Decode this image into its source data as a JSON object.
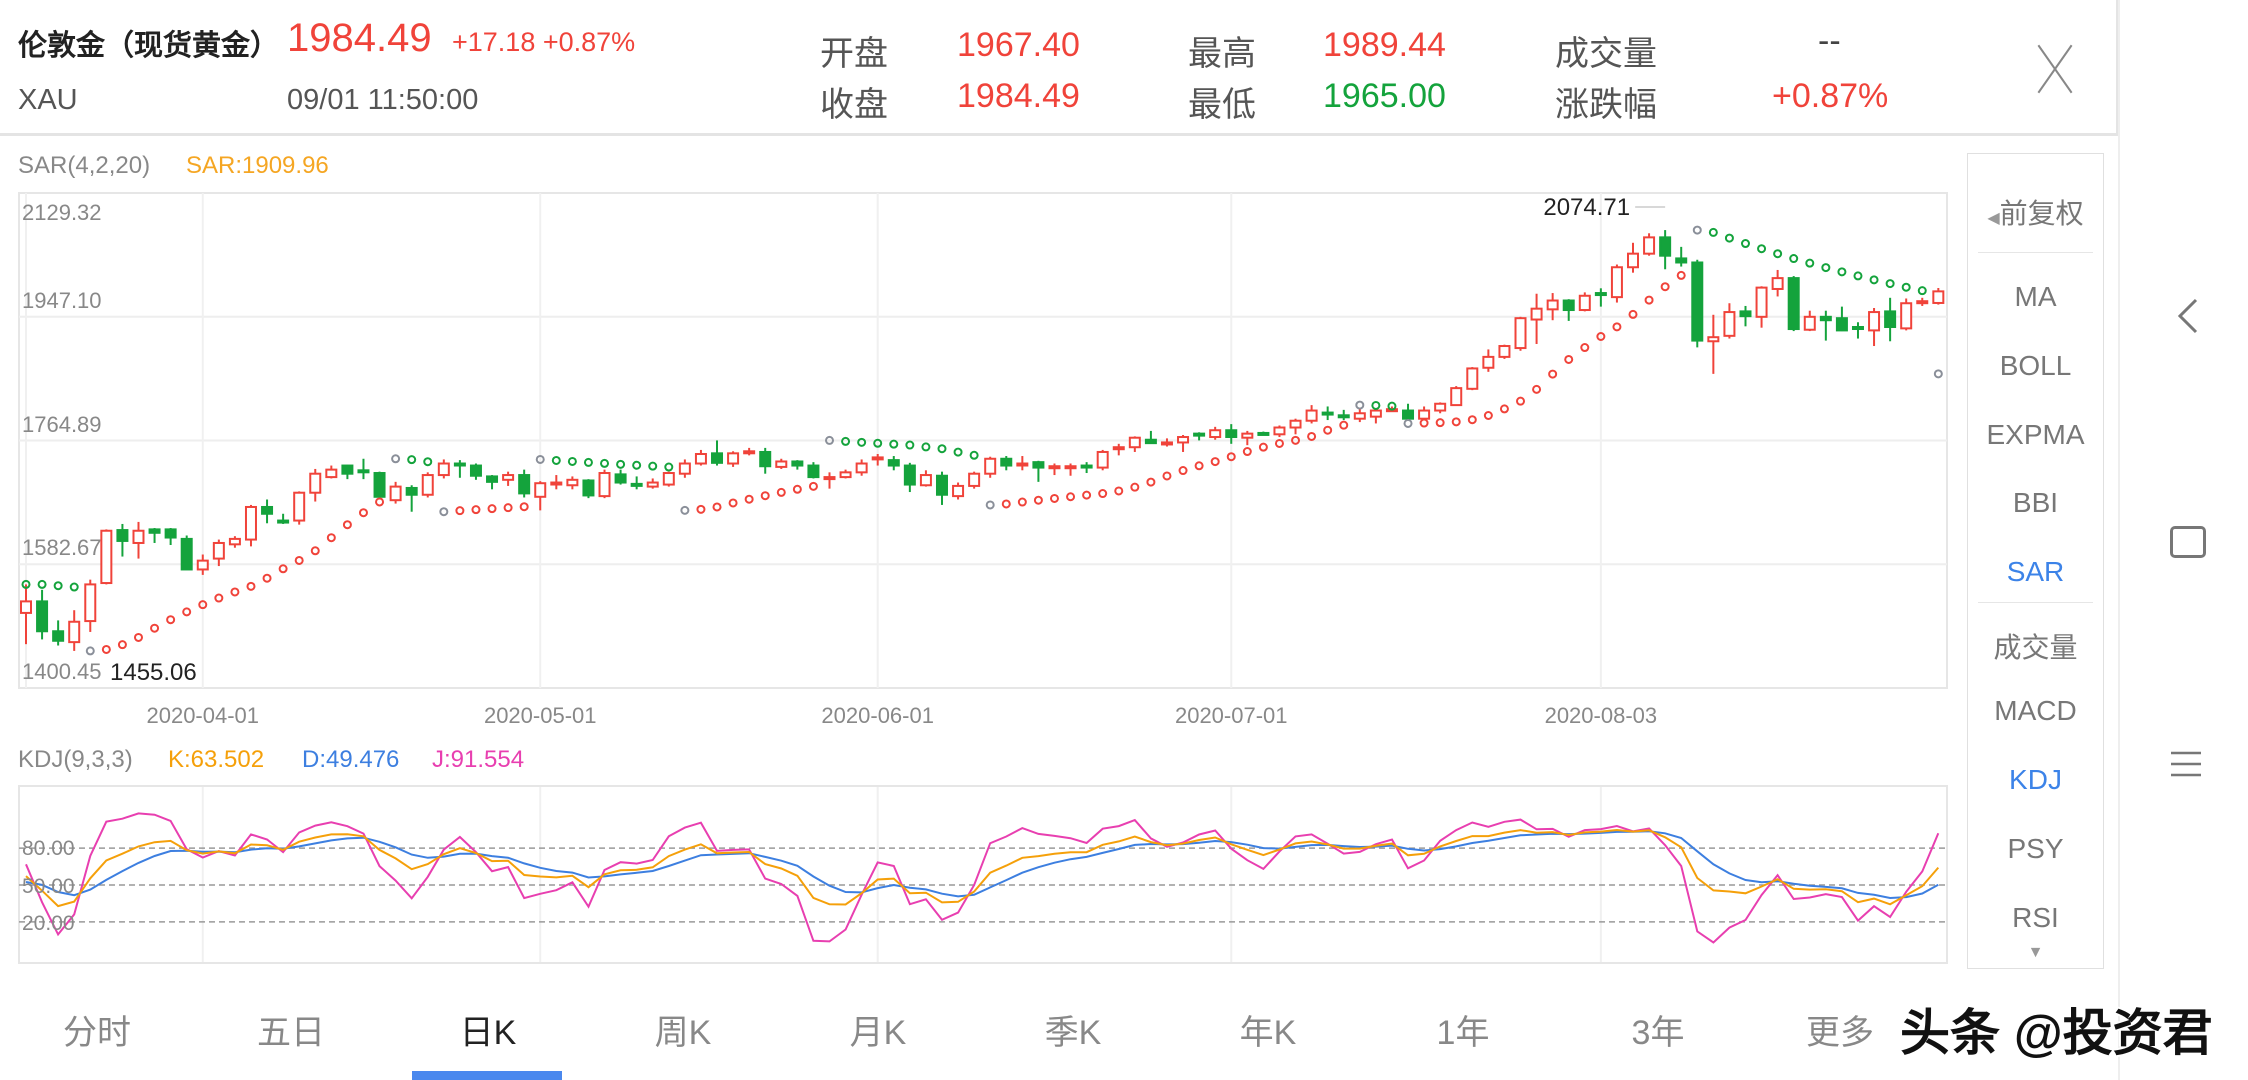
{
  "header": {
    "title": "伦敦金（现货黄金）",
    "price": "1984.49",
    "change": "+17.18 +0.87%",
    "symbol": "XAU",
    "datetime": "09/01 11:50:00",
    "stats": [
      {
        "label": "开盘",
        "value": "1967.40",
        "color": "red"
      },
      {
        "label": "收盘",
        "value": "1984.49",
        "color": "red"
      },
      {
        "label": "最高",
        "value": "1989.44",
        "color": "red"
      },
      {
        "label": "最低",
        "value": "1965.00",
        "color": "green"
      },
      {
        "label": "成交量",
        "value": "--",
        "color": "gray"
      },
      {
        "label": "涨跌幅",
        "value": "+0.87%",
        "color": "red"
      }
    ]
  },
  "indicator": {
    "name": "SAR(4,2,20)",
    "value": "SAR:1909.96"
  },
  "kdj": {
    "name": "KDJ(9,3,3)",
    "k": "K:63.502",
    "d": "D:49.476",
    "j": "J:91.554"
  },
  "side_menu": {
    "adjust": "前复权",
    "items": [
      "MA",
      "BOLL",
      "EXPMA",
      "BBI",
      "SAR",
      "成交量",
      "MACD",
      "KDJ",
      "PSY",
      "RSI"
    ],
    "active": [
      "SAR",
      "KDJ"
    ]
  },
  "tabs": [
    "分时",
    "五日",
    "日K",
    "周K",
    "月K",
    "季K",
    "年K",
    "1年",
    "3年",
    "更多"
  ],
  "active_tab": "日K",
  "watermark": "头条 @投资君",
  "colors": {
    "up": "#f0433a",
    "down": "#14a33c",
    "k": "#f5a00a",
    "d": "#3d7fe0",
    "j": "#e83fb0",
    "sar": "#f5a623",
    "accent": "#4a88ee"
  },
  "chart_data": {
    "type": "candlestick",
    "y_ticks": [
      "2129.32",
      "1947.10",
      "1764.89",
      "1582.67",
      "1400.45"
    ],
    "ylim": [
      1400.45,
      2129.32
    ],
    "x_ticks": [
      {
        "label": "2020-04-01",
        "index": 11
      },
      {
        "label": "2020-05-01",
        "index": 32
      },
      {
        "label": "2020-06-01",
        "index": 53
      },
      {
        "label": "2020-07-01",
        "index": 75
      },
      {
        "label": "2020-08-03",
        "index": 98
      }
    ],
    "max_label": "2074.71",
    "min_label": "1455.06",
    "sar_params": {
      "n": 4,
      "step": 0.02,
      "max": 0.2
    },
    "kdj_params": {
      "n": 9,
      "m1": 3,
      "m2": 3
    },
    "kdj_ticks": [
      "80.00",
      "50.00",
      "20.00"
    ],
    "ohlc": [
      [
        1511,
        1553,
        1465,
        1528
      ],
      [
        1528,
        1545,
        1472,
        1484
      ],
      [
        1484,
        1500,
        1463,
        1470
      ],
      [
        1468,
        1515,
        1455.06,
        1498
      ],
      [
        1499,
        1560,
        1483,
        1553
      ],
      [
        1555,
        1634,
        1553,
        1632
      ],
      [
        1633,
        1642,
        1594,
        1617
      ],
      [
        1614,
        1645,
        1591,
        1632
      ],
      [
        1634,
        1636,
        1614,
        1629
      ],
      [
        1634,
        1636,
        1611,
        1622
      ],
      [
        1620,
        1625,
        1575,
        1575
      ],
      [
        1575,
        1597,
        1567,
        1588
      ],
      [
        1591,
        1619,
        1580,
        1614
      ],
      [
        1612,
        1624,
        1607,
        1620
      ],
      [
        1619,
        1670,
        1609,
        1667
      ],
      [
        1667,
        1678,
        1643,
        1657
      ],
      [
        1647,
        1657,
        1642,
        1646
      ],
      [
        1647,
        1690,
        1641,
        1688
      ],
      [
        1688,
        1723,
        1675,
        1716
      ],
      [
        1711,
        1728,
        1709,
        1722
      ],
      [
        1728,
        1729,
        1708,
        1716
      ],
      [
        1721,
        1738,
        1708,
        1720
      ],
      [
        1717,
        1719,
        1680,
        1682
      ],
      [
        1677,
        1704,
        1672,
        1697
      ],
      [
        1695,
        1699,
        1660,
        1685
      ],
      [
        1685,
        1718,
        1681,
        1714
      ],
      [
        1714,
        1737,
        1709,
        1731
      ],
      [
        1731,
        1736,
        1710,
        1730
      ],
      [
        1728,
        1731,
        1707,
        1713
      ],
      [
        1712,
        1714,
        1693,
        1704
      ],
      [
        1707,
        1719,
        1698,
        1714
      ],
      [
        1714,
        1722,
        1681,
        1687
      ],
      [
        1682,
        1705,
        1662,
        1702
      ],
      [
        1701,
        1714,
        1693,
        1703
      ],
      [
        1699,
        1712,
        1693,
        1707
      ],
      [
        1706,
        1708,
        1680,
        1684
      ],
      [
        1683,
        1722,
        1680,
        1717
      ],
      [
        1715,
        1722,
        1700,
        1703
      ],
      [
        1701,
        1712,
        1693,
        1700
      ],
      [
        1697,
        1709,
        1694,
        1703
      ],
      [
        1700,
        1719,
        1697,
        1717
      ],
      [
        1716,
        1737,
        1710,
        1731
      ],
      [
        1731,
        1751,
        1728,
        1745
      ],
      [
        1746,
        1765,
        1728,
        1732
      ],
      [
        1731,
        1749,
        1726,
        1746
      ],
      [
        1748,
        1754,
        1743,
        1749
      ],
      [
        1748,
        1754,
        1716,
        1727
      ],
      [
        1726,
        1738,
        1723,
        1734
      ],
      [
        1734,
        1736,
        1722,
        1728
      ],
      [
        1728,
        1733,
        1709,
        1711
      ],
      [
        1710,
        1718,
        1694,
        1711
      ],
      [
        1711,
        1722,
        1709,
        1718
      ],
      [
        1718,
        1737,
        1713,
        1731
      ],
      [
        1739,
        1745,
        1728,
        1740
      ],
      [
        1736,
        1742,
        1721,
        1728
      ],
      [
        1728,
        1732,
        1689,
        1700
      ],
      [
        1699,
        1721,
        1697,
        1714
      ],
      [
        1713,
        1719,
        1670,
        1685
      ],
      [
        1683,
        1703,
        1678,
        1698
      ],
      [
        1698,
        1719,
        1694,
        1716
      ],
      [
        1716,
        1741,
        1710,
        1738
      ],
      [
        1738,
        1742,
        1721,
        1728
      ],
      [
        1730,
        1742,
        1721,
        1731
      ],
      [
        1733,
        1735,
        1704,
        1725
      ],
      [
        1726,
        1731,
        1714,
        1727
      ],
      [
        1726,
        1731,
        1713,
        1727
      ],
      [
        1728,
        1733,
        1717,
        1727
      ],
      [
        1725,
        1751,
        1721,
        1748
      ],
      [
        1754,
        1760,
        1743,
        1755
      ],
      [
        1755,
        1771,
        1748,
        1769
      ],
      [
        1766,
        1779,
        1760,
        1761
      ],
      [
        1761,
        1768,
        1756,
        1762
      ],
      [
        1762,
        1773,
        1748,
        1770
      ],
      [
        1775,
        1777,
        1765,
        1774
      ],
      [
        1770,
        1785,
        1766,
        1780
      ],
      [
        1780,
        1789,
        1760,
        1770
      ],
      [
        1769,
        1779,
        1758,
        1775
      ],
      [
        1776,
        1778,
        1773,
        1775
      ],
      [
        1774,
        1787,
        1770,
        1784
      ],
      [
        1784,
        1797,
        1774,
        1794
      ],
      [
        1794,
        1817,
        1790,
        1809
      ],
      [
        1806,
        1815,
        1795,
        1804
      ],
      [
        1802,
        1810,
        1795,
        1801
      ],
      [
        1797,
        1812,
        1792,
        1805
      ],
      [
        1800,
        1812,
        1790,
        1809
      ],
      [
        1810,
        1815,
        1807,
        1811
      ],
      [
        1809,
        1819,
        1795,
        1797
      ],
      [
        1797,
        1815,
        1796,
        1809
      ],
      [
        1809,
        1821,
        1805,
        1819
      ],
      [
        1817,
        1845,
        1816,
        1842
      ],
      [
        1841,
        1873,
        1839,
        1871
      ],
      [
        1872,
        1899,
        1866,
        1888
      ],
      [
        1888,
        1906,
        1885,
        1904
      ],
      [
        1901,
        1947,
        1897,
        1945
      ],
      [
        1943,
        1981,
        1907,
        1959
      ],
      [
        1958,
        1982,
        1942,
        1971
      ],
      [
        1971,
        1973,
        1941,
        1957
      ],
      [
        1957,
        1983,
        1955,
        1978
      ],
      [
        1982,
        1989,
        1962,
        1981
      ],
      [
        1976,
        2024,
        1968,
        2020
      ],
      [
        2020,
        2056,
        2012,
        2040
      ],
      [
        2040,
        2070,
        2037,
        2064
      ],
      [
        2064,
        2074.71,
        2017,
        2037
      ],
      [
        2033,
        2050,
        2021,
        2027
      ],
      [
        2027,
        2031,
        1902,
        1912
      ],
      [
        1911,
        1950,
        1863,
        1917
      ],
      [
        1919,
        1967,
        1915,
        1954
      ],
      [
        1955,
        1963,
        1933,
        1948
      ],
      [
        1947,
        1992,
        1931,
        1990
      ],
      [
        1988,
        2016,
        1977,
        2004
      ],
      [
        2004,
        2007,
        1926,
        1929
      ],
      [
        1928,
        1956,
        1926,
        1947
      ],
      [
        1947,
        1956,
        1912,
        1942
      ],
      [
        1945,
        1962,
        1926,
        1927
      ],
      [
        1932,
        1939,
        1915,
        1931
      ],
      [
        1927,
        1960,
        1904,
        1954
      ],
      [
        1955,
        1975,
        1911,
        1932
      ],
      [
        1930,
        1974,
        1927,
        1967
      ],
      [
        1969,
        1975,
        1963,
        1970
      ],
      [
        1967.4,
        1989.44,
        1965.0,
        1984.49
      ]
    ]
  }
}
